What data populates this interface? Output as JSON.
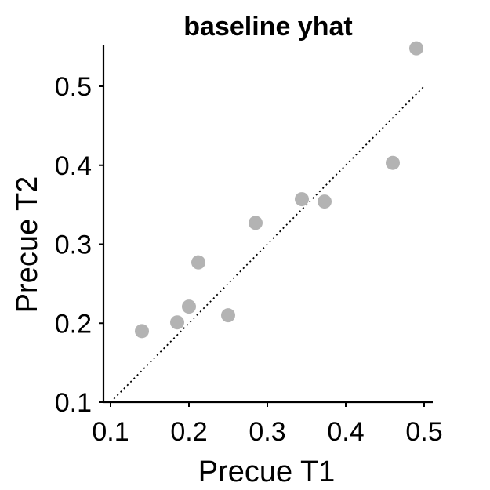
{
  "chart_data": {
    "type": "scatter",
    "title": "baseline yhat",
    "xlabel": "Precue T1",
    "ylabel": "Precue T2",
    "xlim": [
      0.095,
      0.51
    ],
    "ylim": [
      0.1,
      0.55
    ],
    "xticks": [
      0.1,
      0.2,
      0.3,
      0.4,
      0.5
    ],
    "xtick_labels": [
      "0.1",
      "0.2",
      "0.3",
      "0.4",
      "0.5"
    ],
    "yticks": [
      0.1,
      0.2,
      0.3,
      0.4,
      0.5
    ],
    "ytick_labels": [
      "0.1",
      "0.2",
      "0.3",
      "0.4",
      "0.5"
    ],
    "grid": false,
    "reference_line": {
      "style": "dotted",
      "from": [
        0.1,
        0.1
      ],
      "to": [
        0.5,
        0.5
      ]
    },
    "series": [
      {
        "color": "#b3b3b3",
        "points": [
          {
            "x": 0.14,
            "y": 0.19
          },
          {
            "x": 0.185,
            "y": 0.201
          },
          {
            "x": 0.2,
            "y": 0.221
          },
          {
            "x": 0.212,
            "y": 0.277
          },
          {
            "x": 0.25,
            "y": 0.21
          },
          {
            "x": 0.285,
            "y": 0.327
          },
          {
            "x": 0.344,
            "y": 0.357
          },
          {
            "x": 0.373,
            "y": 0.354
          },
          {
            "x": 0.46,
            "y": 0.403
          },
          {
            "x": 0.49,
            "y": 0.548
          }
        ]
      }
    ]
  }
}
